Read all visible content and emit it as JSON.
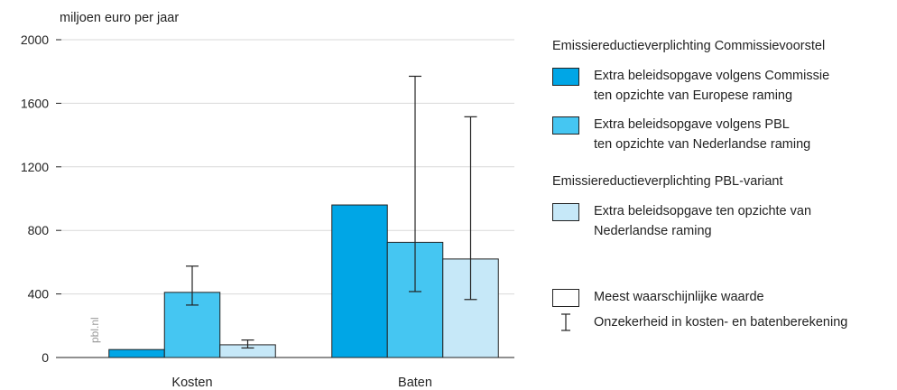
{
  "chart_data": {
    "type": "bar",
    "ylabel": "miljoen euro per jaar",
    "ylim": [
      0,
      2000
    ],
    "yticks": [
      0,
      400,
      800,
      1200,
      1600,
      2000
    ],
    "categories": [
      "Kosten",
      "Baten"
    ],
    "series": [
      {
        "name": "Extra beleidsopgave volgens Commissie ten opzichte van Europese raming",
        "color": "#00a6e6",
        "values": [
          50,
          960
        ],
        "error_low": [
          null,
          null
        ],
        "error_high": [
          null,
          null
        ]
      },
      {
        "name": "Extra beleidsopgave volgens PBL ten opzichte van Nederlandse raming",
        "color": "#45c6f2",
        "values": [
          410,
          725
        ],
        "error_low": [
          330,
          415
        ],
        "error_high": [
          575,
          1770
        ]
      },
      {
        "name": "Extra beleidsopgave ten opzichte van Nederlandse raming",
        "color": "#c6e8f8",
        "values": [
          80,
          620
        ],
        "error_low": [
          60,
          365
        ],
        "error_high": [
          110,
          1515
        ]
      }
    ],
    "watermark": "pbl.nl"
  },
  "legend": {
    "group1_title": "Emissiereductieverplichting Commissievoorstel",
    "item1_lines": [
      "Extra beleidsopgave volgens Commissie",
      "ten opzichte van Europese raming"
    ],
    "item2_lines": [
      "Extra beleidsopgave volgens PBL",
      "ten opzichte van Nederlandse raming"
    ],
    "group2_title": "Emissiereductieverplichting PBL-variant",
    "item3_lines": [
      "Extra beleidsopgave ten opzichte van",
      "Nederlandse raming"
    ],
    "item4_label": "Meest waarschijnlijke waarde",
    "item5_label": "Onzekerheid in kosten- en batenberekening",
    "colors": {
      "series1": "#00a6e6",
      "series2": "#45c6f2",
      "series3": "#c6e8f8",
      "outline": "#ffffff"
    }
  }
}
